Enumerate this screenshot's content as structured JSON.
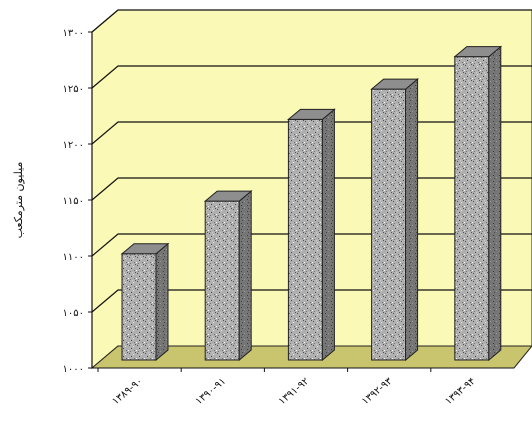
{
  "chart_data": {
    "type": "bar",
    "categories": [
      "۱۳۸۹-۹۰",
      "۱۳۹۰-۹۱",
      "۱۳۹۱-۹۲",
      "۱۳۹۲-۹۳",
      "۱۳۹۳-۹۴"
    ],
    "values": [
      1102,
      1149,
      1222,
      1249,
      1278
    ],
    "ylabel": "میلیون مترمکعب",
    "yticks": [
      "۱۰۰۰",
      "۱۰۵۰",
      "۱۱۰۰",
      "۱۱۵۰",
      "۱۲۰۰",
      "۱۲۵۰",
      "۱۳۰۰"
    ],
    "ylim": [
      1000,
      1300
    ],
    "grid": true,
    "style": "3d"
  },
  "colors": {
    "wall": "#fbf9b6",
    "floor": "#c9c46e",
    "bar_front": "#a9a9a9",
    "bar_side": "#6e6e6e",
    "bar_top": "#8e8e8e"
  }
}
